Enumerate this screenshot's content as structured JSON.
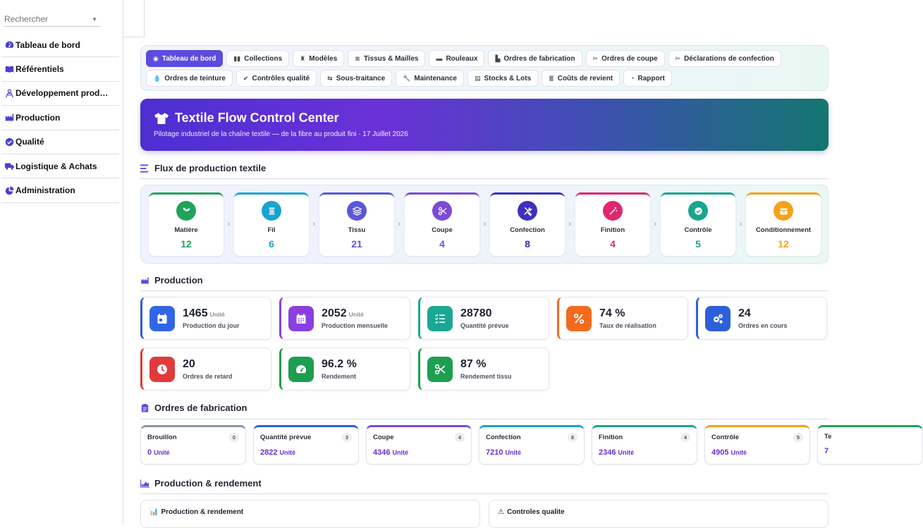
{
  "sidebar": {
    "search_placeholder": "Rechercher",
    "items": [
      {
        "label": "Tableau de bord",
        "icon": "gauge-icon"
      },
      {
        "label": "Référentiels",
        "icon": "book-icon"
      },
      {
        "label": "Développement prod…",
        "icon": "people-icon"
      },
      {
        "label": "Production",
        "icon": "factory-icon"
      },
      {
        "label": "Qualité",
        "icon": "check-circle-icon"
      },
      {
        "label": "Logistique & Achats",
        "icon": "truck-icon"
      },
      {
        "label": "Administration",
        "icon": "pie-icon"
      }
    ]
  },
  "tabs": {
    "row1": [
      {
        "label": "Tableau de bord",
        "icon": "◉",
        "active": true
      },
      {
        "label": "Collections",
        "icon": "▮▮"
      },
      {
        "label": "Modèles",
        "icon": "♜"
      },
      {
        "label": "Tissus & Mailles",
        "icon": "≋"
      },
      {
        "label": "Rouleaux",
        "icon": "▬"
      },
      {
        "label": "Ordres de fabrication",
        "icon": "▙"
      },
      {
        "label": "Ordres de coupe",
        "icon": "✂"
      },
      {
        "label": "Déclarations de confection",
        "icon": "✂"
      }
    ],
    "row2": [
      {
        "label": "Ordres de teinture",
        "icon": "💧"
      },
      {
        "label": "Contrôles qualité",
        "icon": "✔"
      },
      {
        "label": "Sous-traitance",
        "icon": "⇆"
      },
      {
        "label": "Maintenance",
        "icon": "🔧"
      },
      {
        "label": "Stocks & Lots",
        "icon": "▤"
      },
      {
        "label": "Coûts de revient",
        "icon": "≣"
      },
      {
        "label": "Rapport",
        "icon": "◔"
      }
    ]
  },
  "hero": {
    "title": "Textile Flow Control Center",
    "subtitle": "Pilotage industriel de la chaîne textile — de la fibre au produit fini · 17 Juillet 2026"
  },
  "flow": {
    "title": "Flux de production textile",
    "steps": [
      {
        "label": "Matière",
        "value": "12",
        "color": "#1fa45a",
        "icon": "sprout-icon"
      },
      {
        "label": "Fil",
        "value": "6",
        "color": "#1aa3cf",
        "icon": "thread-icon"
      },
      {
        "label": "Tissu",
        "value": "21",
        "color": "#5b57d9",
        "icon": "layers-icon"
      },
      {
        "label": "Coupe",
        "value": "4",
        "color": "#7b4ad8",
        "icon": "scissors-icon"
      },
      {
        "label": "Confection",
        "value": "8",
        "color": "#3e2fbf",
        "icon": "tools-icon"
      },
      {
        "label": "Finition",
        "value": "4",
        "color": "#e0276f",
        "icon": "wand-icon"
      },
      {
        "label": "Contrôle",
        "value": "5",
        "color": "#18a58e",
        "icon": "check-icon"
      },
      {
        "label": "Conditionnement",
        "value": "12",
        "color": "#f5a21b",
        "icon": "box-icon"
      }
    ]
  },
  "production": {
    "title": "Production",
    "kpis": [
      {
        "value": "1465",
        "unit": "Unité",
        "label": "Production du jour",
        "color": "#3066e6",
        "accent": "#2d5fd8",
        "icon": "calendar-day-icon"
      },
      {
        "value": "2052",
        "unit": "Unité",
        "label": "Production mensuelle",
        "color": "#8b3fe0",
        "accent": "#8b3fe0",
        "icon": "calendar-month-icon"
      },
      {
        "value": "28780",
        "unit": "",
        "label": "Quantité prévue",
        "color": "#1aa894",
        "accent": "#1aa894",
        "icon": "list-check-icon"
      },
      {
        "value": "74 %",
        "unit": "",
        "label": "Taux de réalisation",
        "color": "#f26b1d",
        "accent": "#f26b1d",
        "icon": "percent-icon"
      },
      {
        "value": "24",
        "unit": "",
        "label": "Ordres en cours",
        "color": "#2d5fd8",
        "accent": "#2d5fd8",
        "icon": "gears-icon"
      },
      {
        "value": "20",
        "unit": "",
        "label": "Ordres de retard",
        "color": "#e23a3a",
        "accent": "#e23a3a",
        "icon": "clock-icon"
      },
      {
        "value": "96.2 %",
        "unit": "",
        "label": "Rendement",
        "color": "#1e9e50",
        "accent": "#1e9e50",
        "icon": "gauge-icon"
      },
      {
        "value": "87 %",
        "unit": "",
        "label": "Rendement tissu",
        "color": "#1e9e50",
        "accent": "#1e9e50",
        "icon": "scissors-icon"
      }
    ]
  },
  "orders": {
    "title": "Ordres de fabrication",
    "cards": [
      {
        "label": "Brouillon",
        "count": "0",
        "value": "0",
        "unit": "Unité",
        "color": "#8a94a6"
      },
      {
        "label": "Quantité prévue",
        "count": "3",
        "value": "2822",
        "unit": "Unité",
        "color": "#2d5fd8"
      },
      {
        "label": "Coupe",
        "count": "4",
        "value": "4346",
        "unit": "Unité",
        "color": "#7b4ad8"
      },
      {
        "label": "Confection",
        "count": "8",
        "value": "7210",
        "unit": "Unité",
        "color": "#1aa3cf"
      },
      {
        "label": "Finition",
        "count": "4",
        "value": "2346",
        "unit": "Unité",
        "color": "#18a58e"
      },
      {
        "label": "Contrôle",
        "count": "5",
        "value": "4905",
        "unit": "Unité",
        "color": "#f5a21b"
      },
      {
        "label": "Te",
        "count": "",
        "value": "7",
        "unit": "",
        "color": "#1fa45a"
      }
    ]
  },
  "rendement": {
    "title": "Production & rendement",
    "cards": [
      {
        "label": "Production & rendement",
        "icon": "📊"
      },
      {
        "label": "Controles qualite",
        "icon": "⚠"
      }
    ]
  }
}
